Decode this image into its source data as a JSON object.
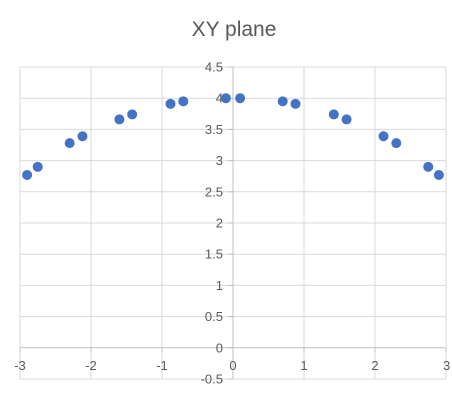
{
  "chart_data": {
    "type": "scatter",
    "title": "XY plane",
    "xlabel": "",
    "ylabel": "",
    "xlim": [
      -3,
      3
    ],
    "ylim": [
      -0.5,
      4.5
    ],
    "x_ticks": [
      "-3",
      "-2",
      "-1",
      "0",
      "1",
      "2",
      "3"
    ],
    "y_ticks": [
      "-0.5",
      "0",
      "0.5",
      "1",
      "1.5",
      "2",
      "2.5",
      "3",
      "3.5",
      "4",
      "4.5"
    ],
    "grid": {
      "vertical": true,
      "horizontal": true
    },
    "legend": "none",
    "marker_color": "#4472c4",
    "series": [
      {
        "x": [
          -2.9,
          -2.75,
          -2.3,
          -2.12,
          -1.6,
          -1.42,
          -0.88,
          -0.7,
          -0.1,
          0.1,
          0.7,
          0.88,
          1.42,
          1.6,
          2.12,
          2.3,
          2.75,
          2.9
        ],
        "y": [
          2.77,
          2.9,
          3.28,
          3.39,
          3.66,
          3.74,
          3.91,
          3.95,
          4.0,
          4.0,
          3.95,
          3.91,
          3.74,
          3.66,
          3.39,
          3.28,
          2.9,
          2.77
        ]
      }
    ]
  }
}
